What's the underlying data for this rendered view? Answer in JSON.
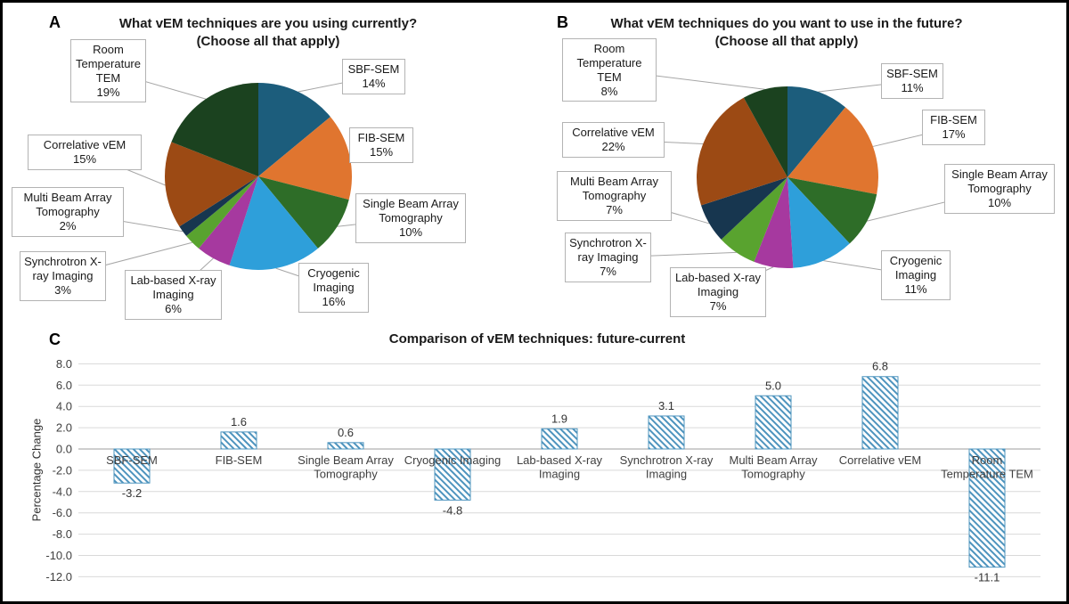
{
  "figure": {
    "panels": {
      "a": {
        "letter": "A",
        "title_line1": "What vEM techniques are you using currently?",
        "title_line2": "(Choose all that apply)"
      },
      "b": {
        "letter": "B",
        "title_line1": "What vEM techniques do you want to use in the future?",
        "title_line2": "(Choose all that apply)"
      },
      "c": {
        "letter": "C",
        "title": "Comparison of vEM techniques: future-current",
        "ylabel": "Percentage Change"
      }
    }
  },
  "chart_data": [
    {
      "id": "current",
      "type": "pie",
      "title": "What vEM techniques are you using currently? (Choose all that apply)",
      "categories": [
        "SBF-SEM",
        "FIB-SEM",
        "Single Beam Array Tomography",
        "Cryogenic Imaging",
        "Lab-based X-ray Imaging",
        "Synchrotron X-ray Imaging",
        "Multi Beam Array Tomography",
        "Correlative vEM",
        "Room Temperature TEM"
      ],
      "values": [
        14,
        15,
        10,
        16,
        6,
        3,
        2,
        15,
        19
      ],
      "pct_labels": [
        "14%",
        "15%",
        "10%",
        "16%",
        "6%",
        "3%",
        "2%",
        "15%",
        "19%"
      ],
      "colors": [
        "#1C5D7C",
        "#E0752F",
        "#2E6D28",
        "#2E9FDA",
        "#A6399F",
        "#59A32F",
        "#17364F",
        "#9C4A14",
        "#1B421F"
      ],
      "start_angle": "top",
      "direction": "clockwise"
    },
    {
      "id": "future",
      "type": "pie",
      "title": "What vEM techniques do you want to use in the future? (Choose all that apply)",
      "categories": [
        "SBF-SEM",
        "FIB-SEM",
        "Single Beam Array Tomography",
        "Cryogenic Imaging",
        "Lab-based X-ray Imaging",
        "Synchrotron X-ray Imaging",
        "Multi Beam Array Tomography",
        "Correlative vEM",
        "Room Temperature TEM"
      ],
      "values": [
        11,
        17,
        10,
        11,
        7,
        7,
        7,
        22,
        8
      ],
      "pct_labels": [
        "11%",
        "17%",
        "10%",
        "11%",
        "7%",
        "7%",
        "7%",
        "22%",
        "8%"
      ],
      "colors": [
        "#1C5D7C",
        "#E0752F",
        "#2E6D28",
        "#2E9FDA",
        "#A6399F",
        "#59A32F",
        "#17364F",
        "#9C4A14",
        "#1B421F"
      ],
      "start_angle": "top",
      "direction": "clockwise"
    },
    {
      "id": "difference",
      "type": "bar",
      "title": "Comparison of vEM techniques: future-current",
      "xlabel": "",
      "ylabel": "Percentage Change",
      "categories": [
        "SBF-SEM",
        "FIB-SEM",
        "Single Beam Array Tomography",
        "Cryogenic Imaging",
        "Lab-based X-ray Imaging",
        "Synchrotron X-ray Imaging",
        "Multi Beam Array Tomography",
        "Correlative vEM",
        "Room Temperature TEM"
      ],
      "tick_lines": [
        [
          "SBF-SEM"
        ],
        [
          "FIB-SEM"
        ],
        [
          "Single Beam Array",
          "Tomography"
        ],
        [
          "Cryogenic Imaging"
        ],
        [
          "Lab-based X-ray",
          "Imaging"
        ],
        [
          "Synchrotron X-ray",
          "Imaging"
        ],
        [
          "Multi Beam Array",
          "Tomography"
        ],
        [
          "Correlative vEM"
        ],
        [
          "Room",
          "Temperature TEM"
        ]
      ],
      "values": [
        -3.2,
        1.6,
        0.6,
        -4.8,
        1.9,
        3.1,
        5.0,
        6.8,
        -11.1
      ],
      "value_labels": [
        "-3.2",
        "1.6",
        "0.6",
        "-4.8",
        "1.9",
        "3.1",
        "5.0",
        "6.8",
        "-11.1"
      ],
      "ylim": [
        -12,
        8
      ],
      "ytick_step": 2,
      "ytick_labels": [
        "-12.0",
        "-10.0",
        "-8.0",
        "-6.0",
        "-4.0",
        "-2.0",
        "0.0",
        "2.0",
        "4.0",
        "6.0",
        "8.0"
      ],
      "grid": true,
      "bar_color": "#4E94BE",
      "bar_fill": "diagonal-hatch"
    }
  ]
}
